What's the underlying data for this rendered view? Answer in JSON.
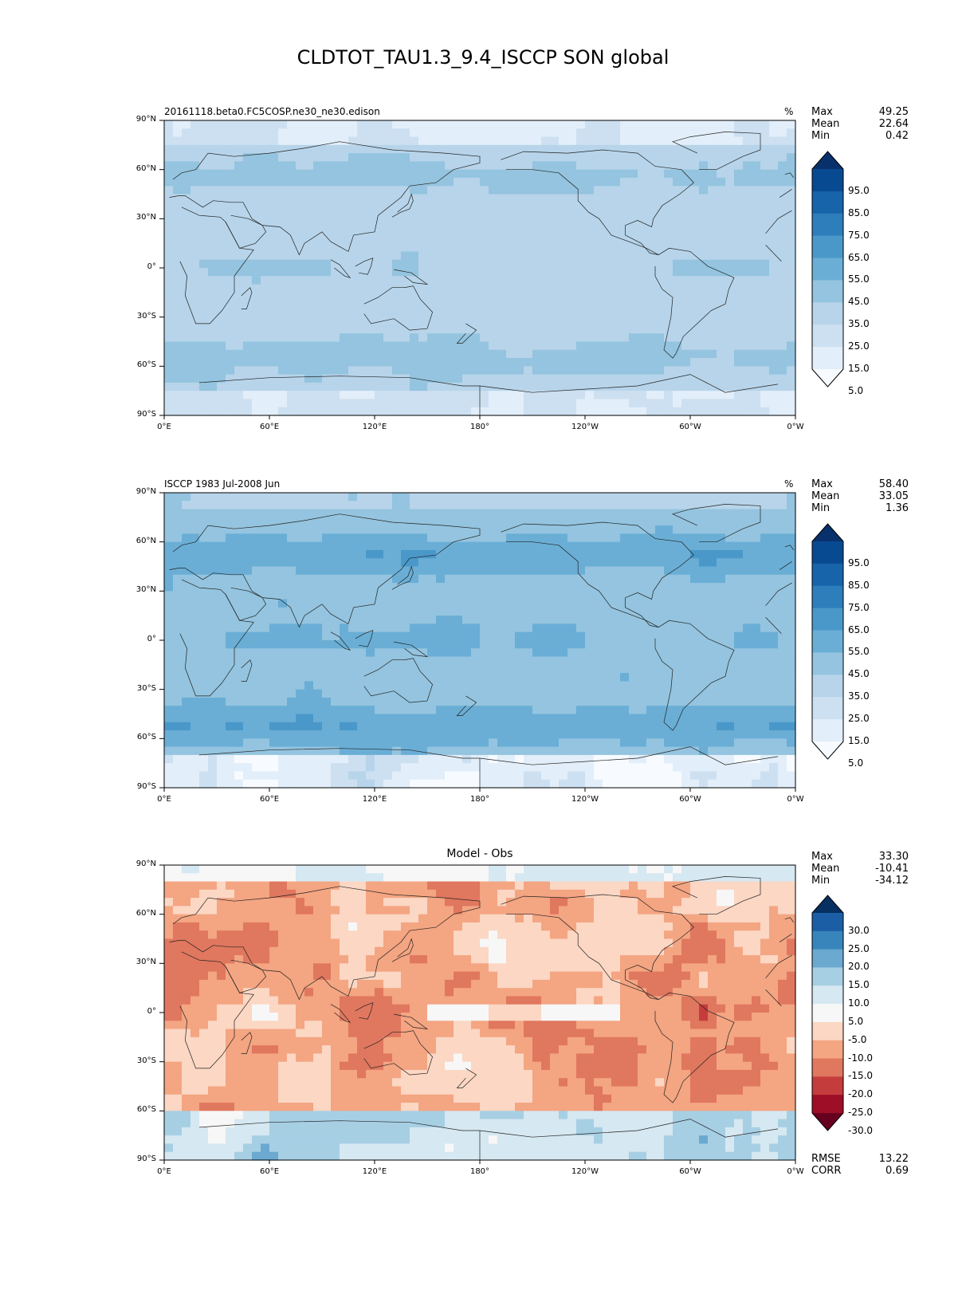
{
  "title": "CLDTOT_TAU1.3_9.4_ISCCP SON global",
  "lat_ticks": [
    "90°N",
    "60°N",
    "30°N",
    "0°",
    "30°S",
    "60°S",
    "90°S"
  ],
  "lon_ticks": [
    "0°E",
    "60°E",
    "120°E",
    "180°",
    "120°W",
    "60°W",
    "0°W"
  ],
  "colors": {
    "seq_levels": [
      "#f7fbff",
      "#e2eef9",
      "#cde0f1",
      "#b7d4ea",
      "#94c4df",
      "#6aaed6",
      "#4a98c9",
      "#2e7ebc",
      "#1764ab",
      "#084a91",
      "#08306b"
    ],
    "div_levels": [
      "#67001f",
      "#9e0e27",
      "#c43c3c",
      "#e0775f",
      "#f4a582",
      "#fbd7c4",
      "#f7f7f7",
      "#d6e8f1",
      "#a7cfe4",
      "#6ba9d0",
      "#3885bc",
      "#1b5ea5",
      "#053061"
    ],
    "coast": "#222222"
  },
  "chart_data": [
    {
      "type": "heatmap",
      "panel": "test",
      "left_title": "20161118.beta0.FC5COSP.ne30_ne30.edison",
      "units": "%",
      "stats": {
        "Max": "49.25",
        "Mean": "22.64",
        "Min": "0.42"
      },
      "colorbar_labels": [
        "95.0",
        "85.0",
        "75.0",
        "65.0",
        "55.0",
        "45.0",
        "35.0",
        "25.0",
        "15.0",
        "5.0"
      ],
      "levels": [
        0,
        5,
        10,
        15,
        25,
        35,
        45,
        55,
        65,
        75,
        85,
        95,
        100
      ],
      "value_range": [
        0.42,
        49.25
      ],
      "mean": 22.64,
      "xlim": [
        0,
        360
      ],
      "ylim": [
        -90,
        90
      ]
    },
    {
      "type": "heatmap",
      "panel": "reference",
      "left_title": "ISCCP 1983 Jul-2008 Jun",
      "units": "%",
      "stats": {
        "Max": "58.40",
        "Mean": "33.05",
        "Min": "1.36"
      },
      "colorbar_labels": [
        "95.0",
        "85.0",
        "75.0",
        "65.0",
        "55.0",
        "45.0",
        "35.0",
        "25.0",
        "15.0",
        "5.0"
      ],
      "levels": [
        0,
        5,
        10,
        15,
        25,
        35,
        45,
        55,
        65,
        75,
        85,
        95,
        100
      ],
      "value_range": [
        1.36,
        58.4
      ],
      "mean": 33.05,
      "xlim": [
        0,
        360
      ],
      "ylim": [
        -90,
        90
      ]
    },
    {
      "type": "heatmap",
      "panel": "difference",
      "center_title": "Model - Obs",
      "stats": {
        "Max": "33.30",
        "Mean": "-10.41",
        "Min": "-34.12"
      },
      "extra_stats": {
        "RMSE": "13.22",
        "CORR": "0.69"
      },
      "colorbar_labels": [
        "30.0",
        "25.0",
        "20.0",
        "15.0",
        "10.0",
        "5.0",
        "-5.0",
        "-10.0",
        "-15.0",
        "-20.0",
        "-25.0",
        "-30.0"
      ],
      "levels": [
        -30,
        -25,
        -20,
        -15,
        -10,
        -5,
        5,
        10,
        15,
        20,
        25,
        30
      ],
      "value_range": [
        -34.12,
        33.3
      ],
      "mean": -10.41,
      "xlim": [
        0,
        360
      ],
      "ylim": [
        -90,
        90
      ]
    }
  ]
}
